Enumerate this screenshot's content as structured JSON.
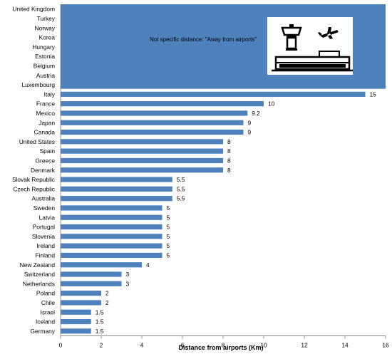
{
  "chart_data": {
    "type": "bar",
    "orientation": "horizontal",
    "xlabel": "Distance from airports (Km)",
    "xlim": [
      0,
      16
    ],
    "xticks": [
      "0",
      "2",
      "4",
      "6",
      "8",
      "10",
      "12",
      "14",
      "16"
    ],
    "bar_color": "#4f81bd",
    "categories_away": [
      "United Kingdom",
      "Turkey",
      "Norway",
      "Korea",
      "Hungary",
      "Estonia",
      "Belgium",
      "Austria",
      "Luxembourg"
    ],
    "away_note": "Not specific distance: \"Away from airports\"",
    "categories": [
      "Italy",
      "France",
      "Mexico",
      "Japan",
      "Canada",
      "United States",
      "Spain",
      "Greece",
      "Denmark",
      "Slovak Republic",
      "Czech Republic",
      "Australia",
      "Sweden",
      "Latvia",
      "Portugal",
      "Slovenia",
      "Ireland",
      "Finland",
      "New Zealand",
      "Switzerland",
      "Netherlands",
      "Poland",
      "Chile",
      "Israel",
      "Iceland",
      "Germany"
    ],
    "values": [
      15,
      10,
      9.2,
      9,
      9,
      8,
      8,
      8,
      8,
      5.5,
      5.5,
      5.5,
      5,
      5,
      5,
      5,
      5,
      5,
      4,
      3,
      3,
      2,
      2,
      1.5,
      1.5,
      1.5
    ],
    "value_labels": [
      "15",
      "10",
      "9.2",
      "9",
      "9",
      "8",
      "8",
      "8",
      "8",
      "5.5",
      "5.5",
      "5.5",
      "5",
      "5",
      "5",
      "5",
      "5",
      "5",
      "4",
      "3",
      "3",
      "2",
      "2",
      "1.5",
      "1.5",
      "1.5"
    ],
    "grid": false,
    "legend": "none",
    "icon": "airport-terminal-icon"
  }
}
